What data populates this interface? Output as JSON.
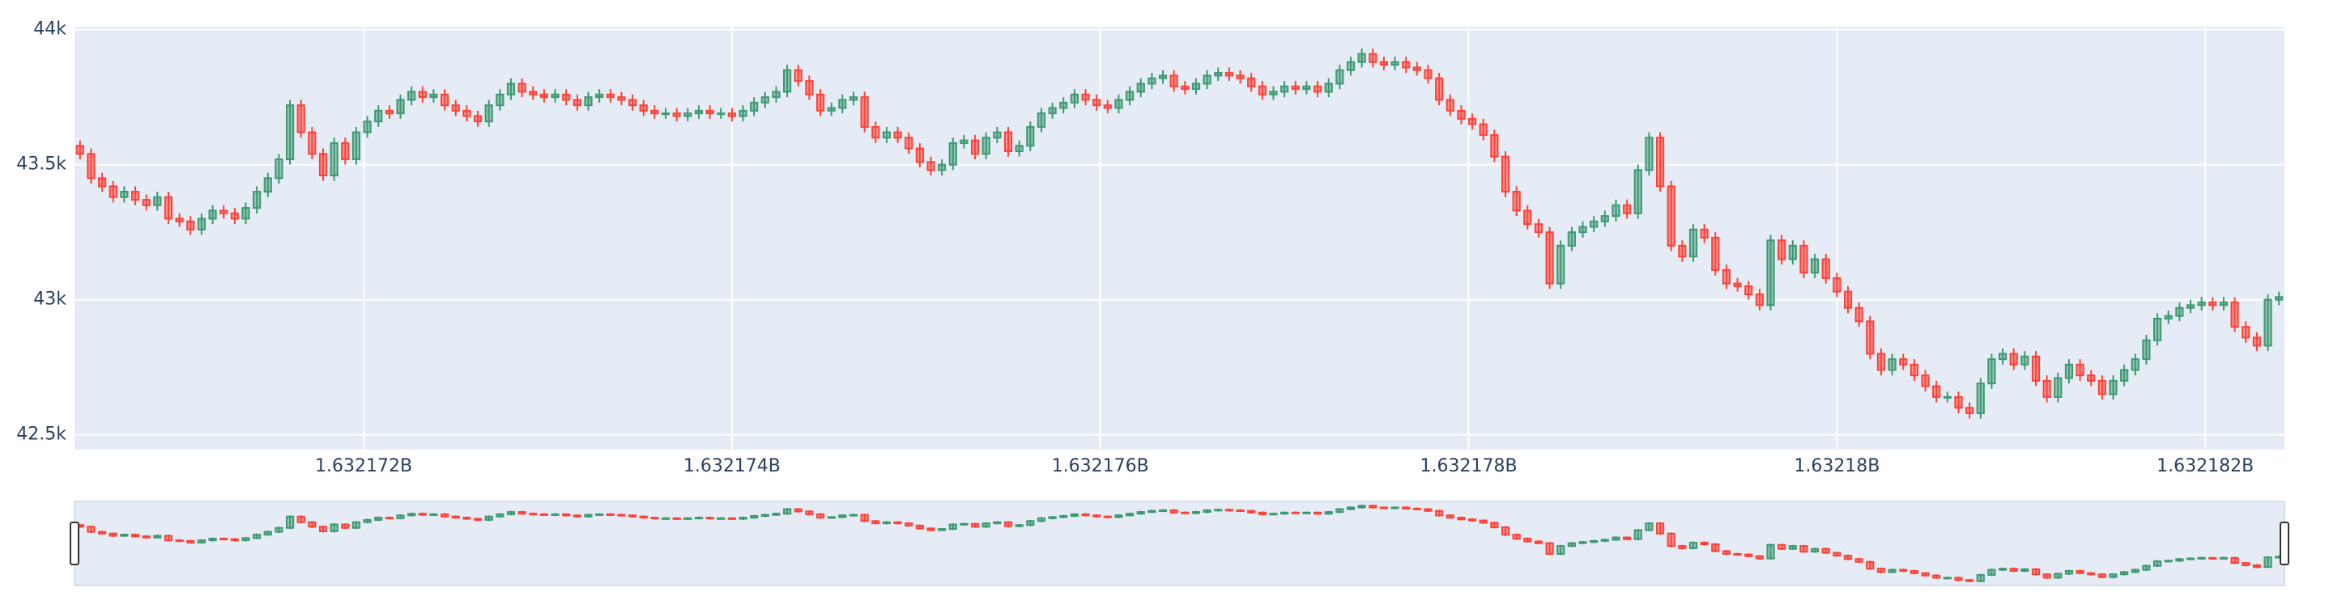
{
  "chart_data": {
    "type": "candlestick",
    "x": [
      1632170460,
      1632170520,
      1632170580,
      1632170640,
      1632170700,
      1632170760,
      1632170820,
      1632170880,
      1632170940,
      1632171000,
      1632171060,
      1632171120,
      1632171180,
      1632171240,
      1632171300,
      1632171360,
      1632171420,
      1632171480,
      1632171540,
      1632171600,
      1632171660,
      1632171720,
      1632171780,
      1632171840,
      1632171900,
      1632171960,
      1632172020,
      1632172080,
      1632172140,
      1632172200,
      1632172260,
      1632172320,
      1632172380,
      1632172440,
      1632172500,
      1632172560,
      1632172620,
      1632172680,
      1632172740,
      1632172800,
      1632172860,
      1632172920,
      1632172980,
      1632173040,
      1632173100,
      1632173160,
      1632173220,
      1632173280,
      1632173340,
      1632173400,
      1632173460,
      1632173520,
      1632173580,
      1632173640,
      1632173700,
      1632173760,
      1632173820,
      1632173880,
      1632173940,
      1632174000,
      1632174060,
      1632174120,
      1632174180,
      1632174240,
      1632174300,
      1632174360,
      1632174420,
      1632174480,
      1632174540,
      1632174600,
      1632174660,
      1632174720,
      1632174780,
      1632174840,
      1632174900,
      1632174960,
      1632175020,
      1632175080,
      1632175140,
      1632175200,
      1632175260,
      1632175320,
      1632175380,
      1632175440,
      1632175500,
      1632175560,
      1632175620,
      1632175680,
      1632175740,
      1632175800,
      1632175860,
      1632175920,
      1632175980,
      1632176040,
      1632176100,
      1632176160,
      1632176220,
      1632176280,
      1632176340,
      1632176400,
      1632176460,
      1632176520,
      1632176580,
      1632176640,
      1632176700,
      1632176760,
      1632176820,
      1632176880,
      1632176940,
      1632177000,
      1632177060,
      1632177120,
      1632177180,
      1632177240,
      1632177300,
      1632177360,
      1632177420,
      1632177480,
      1632177540,
      1632177600,
      1632177660,
      1632177720,
      1632177780,
      1632177840,
      1632177900,
      1632177960,
      1632178020,
      1632178080,
      1632178140,
      1632178200,
      1632178260,
      1632178320,
      1632178380,
      1632178440,
      1632178500,
      1632178560,
      1632178620,
      1632178680,
      1632178740,
      1632178800,
      1632178860,
      1632178920,
      1632178980,
      1632179040,
      1632179100,
      1632179160,
      1632179220,
      1632179280,
      1632179340,
      1632179400,
      1632179460,
      1632179520,
      1632179580,
      1632179640,
      1632179700,
      1632179760,
      1632179820,
      1632179880,
      1632179940,
      1632180000,
      1632180060,
      1632180120,
      1632180180,
      1632180240,
      1632180300,
      1632180360,
      1632180420,
      1632180480,
      1632180540,
      1632180600,
      1632180660,
      1632180720,
      1632180780,
      1632180840,
      1632180900,
      1632180960,
      1632181020,
      1632181080,
      1632181140,
      1632181200,
      1632181260,
      1632181320,
      1632181380,
      1632181440,
      1632181500,
      1632181560,
      1632181620,
      1632181680,
      1632181740,
      1632181800,
      1632181860,
      1632181920,
      1632181980,
      1632182040,
      1632182100,
      1632182160,
      1632182220,
      1632182280,
      1632182340,
      1632182400
    ],
    "open": [
      43570,
      43540,
      43450,
      43420,
      43380,
      43400,
      43370,
      43350,
      43380,
      43300,
      43290,
      43260,
      43300,
      43330,
      43320,
      43300,
      43340,
      43400,
      43450,
      43520,
      43720,
      43620,
      43540,
      43460,
      43580,
      43520,
      43620,
      43660,
      43700,
      43690,
      43740,
      43770,
      43750,
      43760,
      43720,
      43700,
      43680,
      43660,
      43720,
      43760,
      43800,
      43770,
      43760,
      43750,
      43760,
      43740,
      43720,
      43750,
      43760,
      43750,
      43740,
      43720,
      43700,
      43690,
      43690,
      43680,
      43690,
      43700,
      43690,
      43690,
      43680,
      43700,
      43730,
      43750,
      43770,
      43850,
      43810,
      43760,
      43700,
      43710,
      43740,
      43750,
      43640,
      43600,
      43620,
      43600,
      43560,
      43510,
      43480,
      43500,
      43580,
      43590,
      43540,
      43600,
      43620,
      43550,
      43570,
      43640,
      43690,
      43710,
      43730,
      43760,
      43740,
      43720,
      43710,
      43740,
      43770,
      43800,
      43820,
      43830,
      43790,
      43780,
      43800,
      43830,
      43840,
      43830,
      43820,
      43790,
      43760,
      43770,
      43790,
      43780,
      43790,
      43770,
      43800,
      43850,
      43880,
      43910,
      43880,
      43870,
      43880,
      43860,
      43850,
      43820,
      43740,
      43700,
      43670,
      43650,
      43610,
      43530,
      43400,
      43330,
      43280,
      43250,
      43060,
      43200,
      43250,
      43270,
      43290,
      43310,
      43350,
      43320,
      43480,
      43600,
      43420,
      43200,
      43160,
      43260,
      43230,
      43110,
      43060,
      43050,
      43020,
      42980,
      43220,
      43150,
      43200,
      43100,
      43150,
      43080,
      43030,
      42970,
      42920,
      42800,
      42740,
      42780,
      42760,
      42720,
      42680,
      42640,
      42640,
      42600,
      42580,
      42690,
      42780,
      42800,
      42760,
      42790,
      42700,
      42640,
      42710,
      42760,
      42720,
      42700,
      42650,
      42700,
      42740,
      42780,
      42850,
      42930,
      42940,
      42970,
      42980,
      42990,
      42980,
      42990,
      42900,
      42860,
      42830,
      43000
    ],
    "high": [
      43590,
      43560,
      43470,
      43440,
      43420,
      43420,
      43390,
      43400,
      43400,
      43320,
      43310,
      43320,
      43350,
      43350,
      43340,
      43360,
      43420,
      43470,
      43540,
      43740,
      43740,
      43640,
      43560,
      43600,
      43600,
      43640,
      43680,
      43720,
      43720,
      43760,
      43790,
      43790,
      43780,
      43780,
      43740,
      43720,
      43700,
      43740,
      43780,
      43820,
      43820,
      43790,
      43780,
      43780,
      43780,
      43760,
      43770,
      43780,
      43780,
      43770,
      43760,
      43740,
      43720,
      43710,
      43710,
      43710,
      43720,
      43720,
      43710,
      43710,
      43720,
      43750,
      43770,
      43790,
      43870,
      43870,
      43830,
      43780,
      43730,
      43760,
      43770,
      43770,
      43660,
      43640,
      43640,
      43620,
      43580,
      43530,
      43520,
      43600,
      43610,
      43610,
      43620,
      43640,
      43640,
      43590,
      43660,
      43710,
      43730,
      43750,
      43780,
      43780,
      43760,
      43740,
      43760,
      43790,
      43820,
      43840,
      43850,
      43850,
      43810,
      43820,
      43850,
      43860,
      43860,
      43850,
      43840,
      43810,
      43790,
      43810,
      43810,
      43810,
      43810,
      43820,
      43870,
      43900,
      43930,
      43930,
      43900,
      43900,
      43900,
      43880,
      43870,
      43840,
      43760,
      43720,
      43690,
      43670,
      43630,
      43550,
      43420,
      43350,
      43300,
      43270,
      43220,
      43270,
      43290,
      43310,
      43330,
      43370,
      43370,
      43500,
      43620,
      43620,
      43440,
      43220,
      43280,
      43280,
      43250,
      43130,
      43080,
      43070,
      43040,
      43240,
      43240,
      43220,
      43220,
      43170,
      43170,
      43100,
      43050,
      42990,
      42940,
      42820,
      42800,
      42800,
      42780,
      42740,
      42700,
      42660,
      42660,
      42620,
      42710,
      42800,
      42820,
      42820,
      42810,
      42810,
      42720,
      42730,
      42780,
      42780,
      42740,
      42720,
      42720,
      42760,
      42800,
      42870,
      42950,
      42960,
      42990,
      43000,
      43010,
      43010,
      43010,
      43010,
      42920,
      42880,
      43020,
      43030
    ],
    "low": [
      43520,
      43430,
      43400,
      43360,
      43360,
      43350,
      43330,
      43330,
      43280,
      43270,
      43240,
      43240,
      43280,
      43300,
      43280,
      43280,
      43320,
      43380,
      43430,
      43500,
      43600,
      43520,
      43440,
      43440,
      43500,
      43500,
      43600,
      43640,
      43670,
      43670,
      43720,
      43730,
      43730,
      43700,
      43680,
      43660,
      43640,
      43640,
      43700,
      43740,
      43750,
      43740,
      43730,
      43730,
      43720,
      43700,
      43700,
      43730,
      43730,
      43720,
      43700,
      43680,
      43670,
      43670,
      43660,
      43660,
      43670,
      43670,
      43670,
      43660,
      43660,
      43680,
      43710,
      43730,
      43750,
      43790,
      43740,
      43680,
      43680,
      43690,
      43720,
      43620,
      43580,
      43580,
      43580,
      43540,
      43490,
      43460,
      43460,
      43480,
      43560,
      43520,
      43520,
      43580,
      43530,
      43530,
      43550,
      43620,
      43670,
      43690,
      43710,
      43720,
      43700,
      43690,
      43690,
      43720,
      43750,
      43780,
      43800,
      43770,
      43760,
      43760,
      43780,
      43810,
      43810,
      43800,
      43770,
      43740,
      43740,
      43750,
      43760,
      43760,
      43750,
      43750,
      43780,
      43830,
      43860,
      43860,
      43850,
      43850,
      43840,
      43830,
      43800,
      43720,
      43680,
      43650,
      43630,
      43590,
      43510,
      43380,
      43310,
      43260,
      43230,
      43040,
      43040,
      43180,
      43230,
      43250,
      43270,
      43290,
      43300,
      43300,
      43460,
      43400,
      43180,
      43140,
      43140,
      43210,
      43090,
      43040,
      43030,
      43000,
      42960,
      42960,
      43130,
      43130,
      43080,
      43080,
      43060,
      43010,
      42950,
      42900,
      42780,
      42720,
      42720,
      42740,
      42700,
      42660,
      42620,
      42620,
      42580,
      42560,
      42560,
      42670,
      42760,
      42740,
      42740,
      42680,
      42620,
      42620,
      42690,
      42700,
      42680,
      42630,
      42630,
      42680,
      42720,
      42760,
      42830,
      42910,
      42920,
      42950,
      42960,
      42960,
      42960,
      42880,
      42840,
      42810,
      42810,
      42980
    ],
    "close": [
      43540,
      43450,
      43420,
      43380,
      43400,
      43370,
      43350,
      43380,
      43300,
      43290,
      43260,
      43300,
      43330,
      43320,
      43300,
      43340,
      43400,
      43450,
      43520,
      43720,
      43620,
      43540,
      43460,
      43580,
      43520,
      43620,
      43660,
      43700,
      43690,
      43740,
      43770,
      43750,
      43760,
      43720,
      43700,
      43680,
      43660,
      43720,
      43760,
      43800,
      43770,
      43760,
      43750,
      43760,
      43740,
      43720,
      43750,
      43760,
      43750,
      43740,
      43720,
      43700,
      43690,
      43690,
      43680,
      43690,
      43700,
      43690,
      43690,
      43680,
      43700,
      43730,
      43750,
      43770,
      43850,
      43810,
      43760,
      43700,
      43710,
      43740,
      43750,
      43640,
      43600,
      43620,
      43600,
      43560,
      43510,
      43480,
      43500,
      43580,
      43590,
      43540,
      43600,
      43620,
      43550,
      43570,
      43640,
      43690,
      43710,
      43730,
      43760,
      43740,
      43720,
      43710,
      43740,
      43770,
      43800,
      43820,
      43830,
      43790,
      43780,
      43800,
      43830,
      43840,
      43830,
      43820,
      43790,
      43760,
      43770,
      43790,
      43780,
      43790,
      43770,
      43800,
      43850,
      43880,
      43910,
      43880,
      43870,
      43880,
      43860,
      43850,
      43820,
      43740,
      43700,
      43670,
      43650,
      43610,
      43530,
      43400,
      43330,
      43280,
      43250,
      43060,
      43200,
      43250,
      43270,
      43290,
      43310,
      43350,
      43320,
      43480,
      43600,
      43420,
      43200,
      43160,
      43260,
      43230,
      43110,
      43060,
      43050,
      43020,
      42980,
      43220,
      43150,
      43200,
      43100,
      43150,
      43080,
      43030,
      42970,
      42920,
      42800,
      42740,
      42780,
      42760,
      42720,
      42680,
      42640,
      42640,
      42600,
      42580,
      42690,
      42780,
      42800,
      42760,
      42790,
      42700,
      42640,
      42710,
      42760,
      42720,
      42700,
      42650,
      42700,
      42740,
      42780,
      42850,
      42930,
      42940,
      42970,
      42980,
      42990,
      42980,
      42990,
      42900,
      42860,
      42830,
      43000,
      43010
    ],
    "increasing_color": "#3d9970",
    "decreasing_color": "#ff4136",
    "xlim": [
      1632170430,
      1632182430
    ],
    "ylim": [
      42445,
      44011
    ],
    "xticks": [
      {
        "value": 1632172000,
        "label": "1.632172B"
      },
      {
        "value": 1632174000,
        "label": "1.632174B"
      },
      {
        "value": 1632176000,
        "label": "1.632176B"
      },
      {
        "value": 1632178000,
        "label": "1.632178B"
      },
      {
        "value": 1632180000,
        "label": "1.63218B"
      },
      {
        "value": 1632182000,
        "label": "1.632182B"
      }
    ],
    "yticks": [
      {
        "value": 42500,
        "label": "42.5k"
      },
      {
        "value": 43000,
        "label": "43k"
      },
      {
        "value": 43500,
        "label": "43.5k"
      },
      {
        "value": 44000,
        "label": "44k"
      }
    ],
    "grid": true,
    "rangeslider": true
  }
}
